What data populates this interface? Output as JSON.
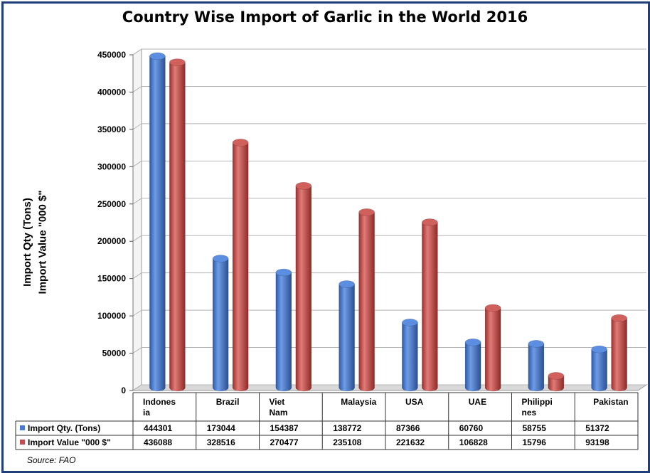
{
  "chart_data": {
    "type": "bar",
    "title": "Country Wise Import of Garlic in the World 2016",
    "ylabel_lines": [
      "Import Qty (Tons)",
      "Import Value \"000 $\""
    ],
    "ylim": [
      0,
      450000
    ],
    "yticks": [
      "0",
      "50000",
      "100000",
      "150000",
      "200000",
      "250000",
      "300000",
      "350000",
      "400000",
      "450000"
    ],
    "categories": [
      [
        "Indones",
        "ia"
      ],
      [
        "Brazil"
      ],
      [
        "Viet",
        "Nam"
      ],
      [
        "Malaysia"
      ],
      [
        "USA"
      ],
      [
        "UAE"
      ],
      [
        "Philippi",
        "nes"
      ],
      [
        "Pakistan"
      ]
    ],
    "series": [
      {
        "name": "Import Qty. (Tons)",
        "color": "#4a7bd0",
        "values": [
          444301,
          173044,
          154387,
          138772,
          87366,
          60760,
          58755,
          51372
        ],
        "labels": [
          "444301",
          "173044",
          "154387",
          "138772",
          "87366",
          "60760",
          "58755",
          "51372"
        ]
      },
      {
        "name": "Import Value \"000 $\"",
        "color": "#c0504d",
        "values": [
          436088,
          328516,
          270477,
          235108,
          221632,
          106828,
          15796,
          93198
        ],
        "labels": [
          "436088",
          "328516",
          "270477",
          "235108",
          "221632",
          "106828",
          "15796",
          "93198"
        ]
      }
    ],
    "grid": true,
    "legend": "data-table"
  },
  "source": "Source: FAO"
}
